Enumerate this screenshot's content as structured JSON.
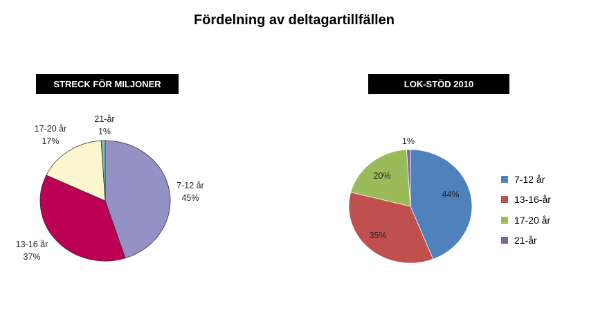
{
  "title": "Fördelning av deltagartillfällen",
  "chart_data": [
    {
      "type": "pie",
      "title": "STRECK FÖR MILJONER",
      "categories": [
        "7-12 år",
        "13-16 år",
        "17-20 år",
        "21-år"
      ],
      "values": [
        45,
        37,
        17,
        1
      ],
      "labels": [
        "45%",
        "37%",
        "17%",
        "1%"
      ],
      "colors": [
        "#9491C5",
        "#BC0056",
        "#FDF6CF",
        "#7FBFA8"
      ],
      "label_style": "category-and-percent-outside"
    },
    {
      "type": "pie",
      "title": "LOK-STÖD 2010",
      "categories": [
        "7-12 år",
        "13-16-år",
        "17-20 år",
        "21-år"
      ],
      "values": [
        44,
        35,
        20,
        1
      ],
      "labels": [
        "44%",
        "35%",
        "20%",
        "1%"
      ],
      "colors": [
        "#4F81BD",
        "#C0504D",
        "#9BBB59",
        "#8064A2"
      ],
      "label_style": "percent-inside",
      "legend": "right"
    }
  ]
}
